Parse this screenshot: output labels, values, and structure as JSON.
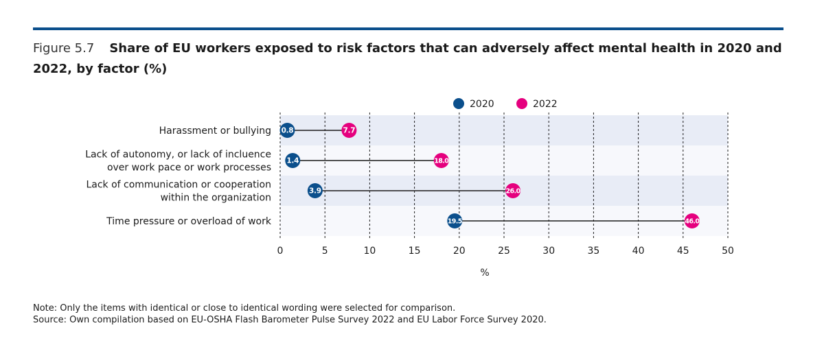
{
  "figure": {
    "label": "Figure 5.7",
    "title": "Share of EU workers exposed to risk factors that can adversely affect mental health in 2020 and 2022, by factor (%)"
  },
  "chart_data": {
    "type": "dumbbell",
    "orientation": "horizontal",
    "categories": [
      [
        "Harassment or bullying"
      ],
      [
        "Lack of autonomy, or lack of incluence",
        "over work pace or work processes"
      ],
      [
        "Lack of communication or cooperation",
        "within the organization"
      ],
      [
        "Time pressure or overload of work"
      ]
    ],
    "series": [
      {
        "name": "2020",
        "color": "#0b4f8c",
        "values": [
          0.8,
          1.4,
          3.9,
          19.5
        ],
        "labels": [
          "0.8",
          "1.4",
          "3.9",
          "19.5"
        ]
      },
      {
        "name": "2022",
        "color": "#e5007e",
        "values": [
          7.7,
          18.0,
          26.0,
          46.0
        ],
        "labels": [
          "7.7",
          "18.0",
          "26.0",
          "46.0"
        ]
      }
    ],
    "xlim": [
      0,
      50
    ],
    "xticks": [
      0,
      5,
      10,
      15,
      20,
      25,
      30,
      35,
      40,
      45,
      50
    ],
    "xlabel": "%",
    "legend_position": "top",
    "grid": "vertical dashed"
  },
  "notes": {
    "note": "Note: Only the items with identical or close to identical wording were selected for comparison.",
    "source": "Source: Own compilation based on EU-OSHA Flash Barometer Pulse Survey 2022 and EU Labor Force Survey 2020."
  }
}
